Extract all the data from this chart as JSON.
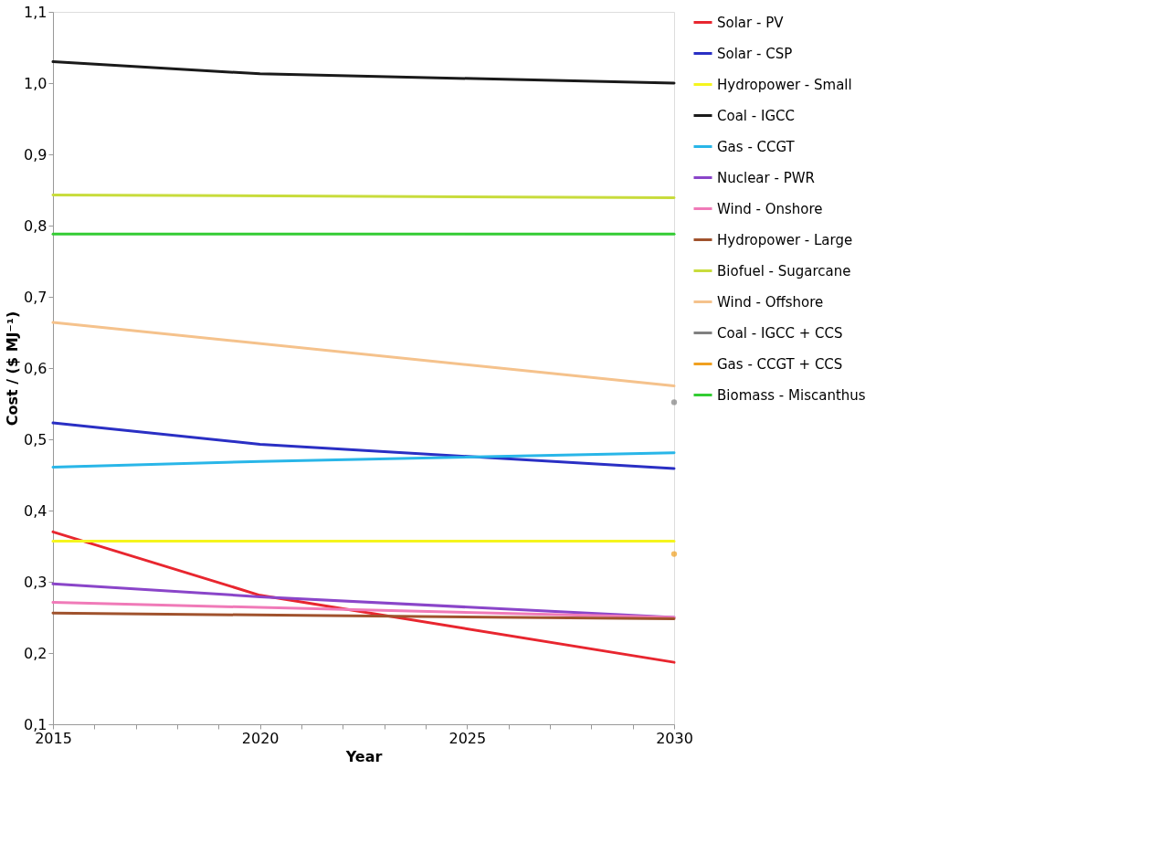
{
  "chart_data": {
    "type": "line",
    "xlabel": "Year",
    "ylabel": "Cost / ($ MJ⁻¹)",
    "xlim": [
      2015,
      2030
    ],
    "xticks": [
      2015,
      {
        "value": 2016,
        "label": null
      },
      {
        "value": 2017,
        "label": null
      },
      {
        "value": 2018,
        "label": null
      },
      {
        "value": 2019,
        "label": null
      },
      2020,
      {
        "value": 2021,
        "label": null
      },
      {
        "value": 2022,
        "label": null
      },
      {
        "value": 2023,
        "label": null
      },
      {
        "value": 2024,
        "label": null
      },
      2025,
      {
        "value": 2026,
        "label": null
      },
      {
        "value": 2027,
        "label": null
      },
      {
        "value": 2028,
        "label": null
      },
      {
        "value": 2029,
        "label": null
      },
      2030
    ],
    "ylim": [
      0.1,
      1.1
    ],
    "yticks": [
      {
        "value": 0.1,
        "label": "0,1"
      },
      {
        "value": 0.2,
        "label": "0,2"
      },
      {
        "value": 0.3,
        "label": "0,3"
      },
      {
        "value": 0.4,
        "label": "0,4"
      },
      {
        "value": 0.5,
        "label": "0,5"
      },
      {
        "value": 0.6,
        "label": "0,6"
      },
      {
        "value": 0.7,
        "label": "0,7"
      },
      {
        "value": 0.8,
        "label": "0,8"
      },
      {
        "value": 0.9,
        "label": "0,9"
      },
      {
        "value": 1.0,
        "label": "1,0"
      },
      {
        "value": 1.1,
        "label": "1,1"
      }
    ],
    "grid": false,
    "legend": "right",
    "marker": "none",
    "line_style": "solid",
    "series": [
      {
        "name": "Solar - PV",
        "color": "#e8262f",
        "x": [
          2015,
          2020,
          2030
        ],
        "values": [
          0.37,
          0.281,
          0.187
        ]
      },
      {
        "name": "Solar - CSP",
        "color": "#2a2fc4",
        "x": [
          2015,
          2020,
          2030
        ],
        "values": [
          0.523,
          0.493,
          0.459
        ]
      },
      {
        "name": "Hydropower - Small",
        "color": "#f5f51e",
        "x": [
          2015,
          2030
        ],
        "values": [
          0.357,
          0.357
        ]
      },
      {
        "name": "Coal - IGCC",
        "color": "#1a1a1a",
        "x": [
          2015,
          2020,
          2030
        ],
        "values": [
          1.03,
          1.013,
          1.0
        ]
      },
      {
        "name": "Gas - CCGT",
        "color": "#29b6e8",
        "x": [
          2015,
          2020,
          2030
        ],
        "values": [
          0.461,
          0.469,
          0.481
        ]
      },
      {
        "name": "Nuclear - PWR",
        "color": "#8a45c9",
        "x": [
          2015,
          2020,
          2030
        ],
        "values": [
          0.297,
          0.279,
          0.25
        ]
      },
      {
        "name": "Wind - Onshore",
        "color": "#f07ab8",
        "x": [
          2015,
          2030
        ],
        "values": [
          0.271,
          0.25
        ]
      },
      {
        "name": "Hydropower - Large",
        "color": "#a0522d",
        "x": [
          2015,
          2030
        ],
        "values": [
          0.256,
          0.248
        ]
      },
      {
        "name": "Biofuel - Sugarcane",
        "color": "#c8dc3c",
        "x": [
          2015,
          2030
        ],
        "values": [
          0.843,
          0.839
        ]
      },
      {
        "name": "Wind - Offshore",
        "color": "#f5c28c",
        "x": [
          2015,
          2030
        ],
        "values": [
          0.664,
          0.575
        ]
      },
      {
        "name": "Coal - IGCC + CCS",
        "color": "#808080",
        "type": "scatter",
        "marker": "circle",
        "x": [
          2030
        ],
        "values": [
          0.552
        ]
      },
      {
        "name": "Gas - CCGT + CCS",
        "color": "#f0a020",
        "type": "scatter",
        "marker": "circle",
        "x": [
          2030
        ],
        "values": [
          0.339
        ]
      },
      {
        "name": "Biomass - Miscanthus",
        "color": "#33cc33",
        "x": [
          2015,
          2030
        ],
        "values": [
          0.788,
          0.788
        ]
      }
    ]
  }
}
